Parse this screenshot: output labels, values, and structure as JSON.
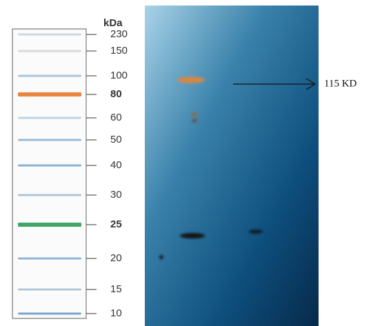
{
  "ladder": {
    "unit": "kDa",
    "markers": [
      "230",
      "150",
      "100",
      "80",
      "60",
      "50",
      "40",
      "30",
      "25",
      "20",
      "15",
      "10"
    ]
  },
  "annotation": {
    "label": "115 KD"
  }
}
